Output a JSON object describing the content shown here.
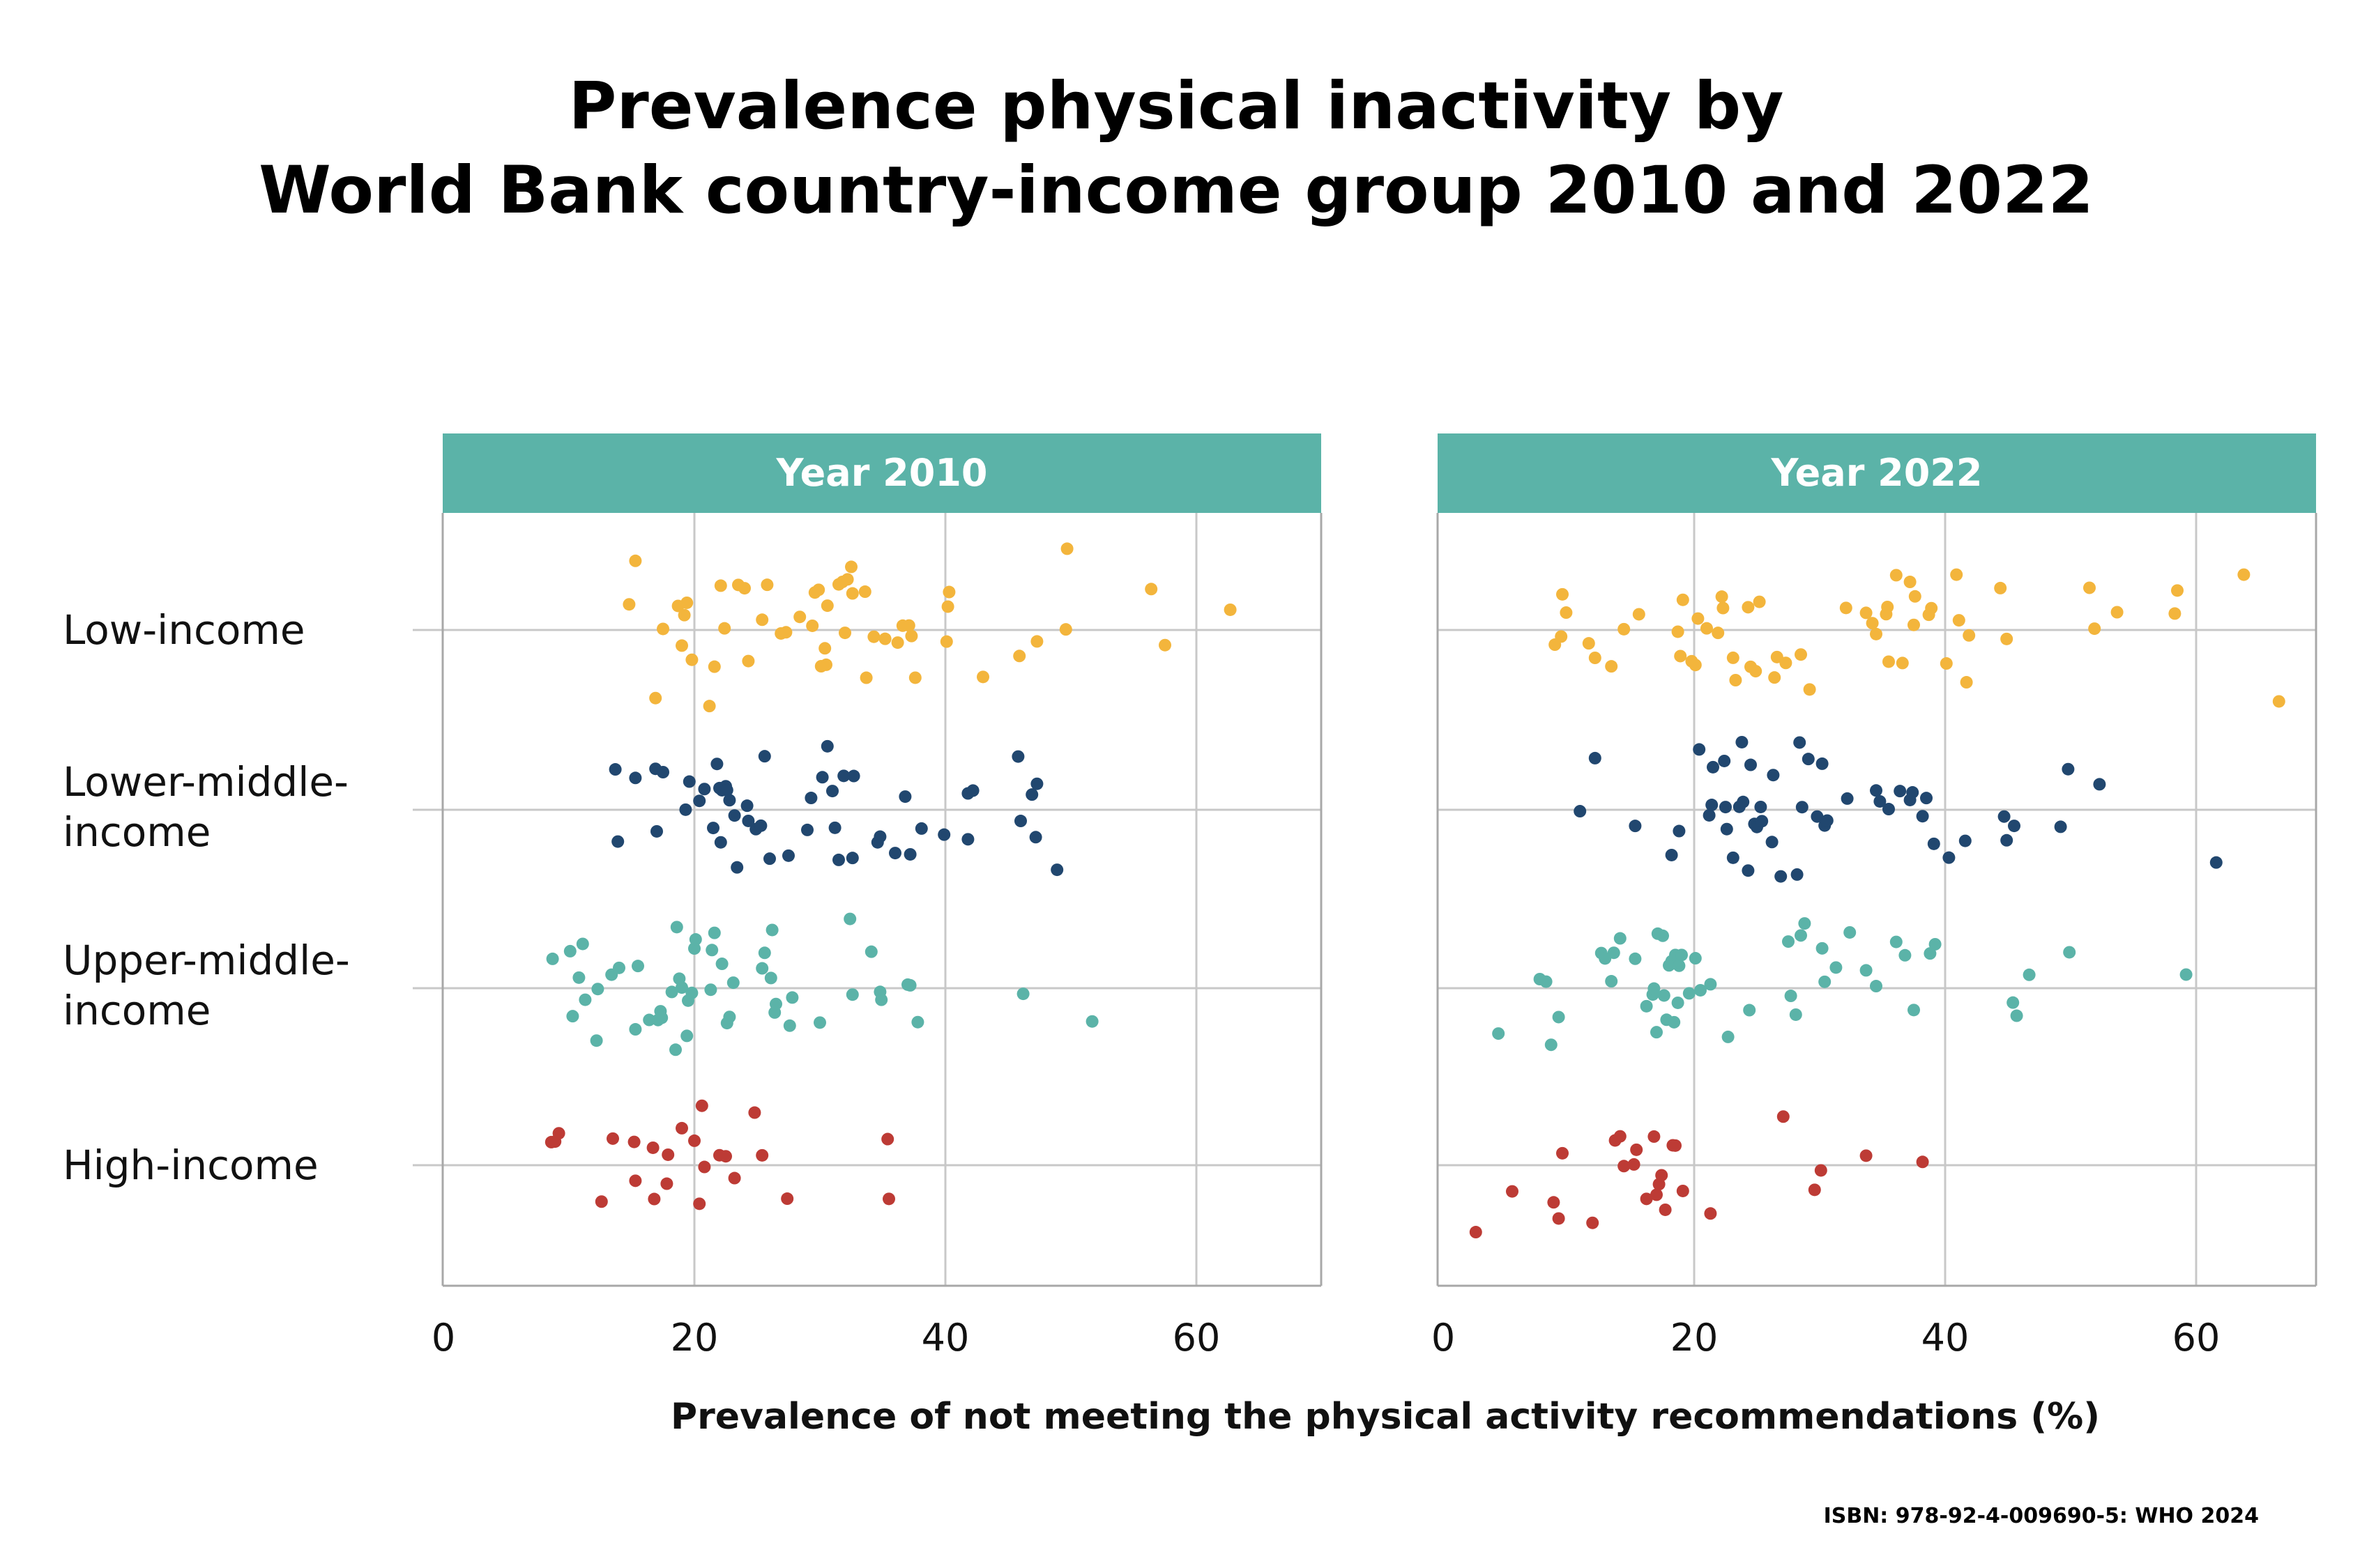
{
  "title_lines": [
    "Prevalence physical inactivity by",
    "World Bank country-income group 2010 and 2022"
  ],
  "source": "ISBN: 978-92-4-009690-5: WHO 2024",
  "colors": {
    "panel_header": "#5bb3a8",
    "grid": "#c8c8c8",
    "frame": "#a8a8a8",
    "Low-income": "#f3b53c",
    "Lower-middle-income": "#21476f",
    "Upper-middle-income": "#5bb3a8",
    "High-income": "#bd3b35"
  },
  "chart_data": {
    "type": "scatter",
    "subtype": "beeswarm",
    "xlabel": "Prevalence of not meeting the physical activity recommendations (%)",
    "xlim": [
      0,
      70
    ],
    "xticks": [
      "0",
      "20",
      "40",
      "60"
    ],
    "grid": true,
    "categories": [
      {
        "key": "Low-income",
        "lines": [
          "Low-income"
        ]
      },
      {
        "key": "Lower-middle-income",
        "lines": [
          "Lower-middle-",
          "income"
        ]
      },
      {
        "key": "Upper-middle-income",
        "lines": [
          "Upper-middle-",
          "income"
        ]
      },
      {
        "key": "High-income",
        "lines": [
          "High-income"
        ]
      }
    ],
    "panels": [
      {
        "title": "Year 2010",
        "series": [
          {
            "category": "Low-income",
            "values": [
              14.8,
              15.3,
              16.9,
              17.5,
              18.7,
              19.0,
              19.2,
              19.4,
              19.8,
              21.2,
              21.6,
              22.1,
              22.4,
              23.5,
              24.0,
              24.3,
              25.4,
              25.8,
              26.9,
              27.3,
              28.4,
              29.4,
              29.6,
              29.9,
              30.1,
              30.4,
              30.5,
              30.6,
              31.5,
              31.8,
              32.0,
              32.2,
              32.5,
              32.6,
              33.6,
              33.7,
              34.3,
              35.2,
              36.2,
              36.6,
              37.1,
              37.3,
              37.6,
              40.1,
              40.2,
              40.3,
              43.0,
              45.9,
              47.3,
              49.6,
              49.7,
              56.4,
              57.5,
              62.7
            ]
          },
          {
            "category": "Lower-middle-income",
            "values": [
              13.7,
              13.9,
              15.3,
              16.9,
              17.0,
              17.5,
              19.3,
              19.6,
              20.4,
              20.8,
              21.5,
              21.8,
              22.0,
              22.1,
              22.2,
              22.5,
              22.6,
              22.8,
              23.2,
              23.4,
              24.2,
              24.3,
              24.9,
              25.3,
              25.6,
              26.0,
              27.5,
              29.0,
              29.3,
              30.2,
              30.6,
              31.0,
              31.2,
              31.5,
              31.9,
              32.6,
              32.7,
              34.6,
              34.8,
              36.0,
              36.8,
              37.2,
              38.1,
              39.9,
              41.8,
              41.8,
              42.2,
              45.8,
              46.0,
              46.9,
              47.2,
              47.3,
              48.9
            ]
          },
          {
            "category": "Upper-middle-income",
            "values": [
              8.7,
              10.1,
              10.3,
              10.8,
              11.1,
              11.3,
              12.2,
              12.3,
              13.4,
              14.0,
              15.3,
              15.5,
              16.4,
              17.1,
              17.3,
              17.4,
              18.2,
              18.5,
              18.6,
              18.8,
              19.0,
              19.4,
              19.5,
              19.8,
              20.0,
              20.1,
              21.3,
              21.4,
              21.6,
              22.2,
              22.6,
              22.8,
              23.1,
              25.4,
              25.6,
              26.1,
              26.2,
              26.4,
              26.5,
              27.6,
              27.8,
              30.0,
              32.4,
              32.6,
              34.1,
              34.8,
              34.9,
              37.0,
              37.2,
              37.8,
              46.2,
              51.7
            ]
          },
          {
            "category": "High-income",
            "values": [
              8.6,
              8.9,
              9.2,
              12.6,
              13.5,
              15.2,
              15.3,
              16.7,
              16.8,
              17.8,
              17.9,
              19.0,
              20.0,
              20.4,
              20.6,
              20.8,
              22.0,
              22.5,
              23.2,
              24.8,
              25.4,
              27.4,
              35.4,
              35.5
            ]
          }
        ]
      },
      {
        "title": "Year 2022",
        "series": [
          {
            "category": "Low-income",
            "values": [
              8.9,
              9.4,
              9.5,
              9.8,
              11.6,
              12.1,
              13.4,
              14.4,
              15.6,
              18.7,
              18.9,
              19.1,
              19.8,
              20.1,
              20.3,
              21.0,
              21.9,
              22.2,
              22.3,
              23.1,
              23.3,
              24.3,
              24.5,
              24.9,
              25.2,
              26.4,
              26.6,
              27.3,
              28.5,
              29.2,
              32.1,
              33.7,
              34.2,
              34.5,
              35.3,
              35.4,
              35.5,
              36.1,
              36.6,
              37.2,
              37.5,
              37.6,
              38.7,
              38.9,
              40.1,
              40.9,
              41.1,
              41.7,
              41.9,
              44.4,
              44.9,
              51.5,
              51.9,
              53.7,
              58.3,
              58.5,
              63.8,
              66.6
            ]
          },
          {
            "category": "Lower-middle-income",
            "values": [
              10.9,
              12.1,
              15.3,
              18.2,
              18.8,
              20.4,
              21.2,
              21.4,
              21.5,
              22.4,
              22.5,
              22.6,
              23.1,
              23.6,
              23.8,
              23.9,
              24.3,
              24.5,
              24.8,
              25.0,
              25.3,
              25.4,
              26.2,
              26.3,
              26.9,
              28.2,
              28.4,
              28.6,
              29.1,
              29.8,
              30.2,
              30.4,
              30.6,
              32.2,
              34.5,
              34.8,
              35.5,
              36.4,
              37.2,
              37.4,
              38.2,
              38.5,
              39.1,
              40.3,
              41.6,
              44.7,
              44.9,
              45.5,
              49.2,
              49.8,
              52.3,
              61.6
            ]
          },
          {
            "category": "Upper-middle-income",
            "values": [
              4.4,
              7.7,
              8.2,
              8.6,
              9.2,
              12.6,
              12.9,
              13.4,
              13.6,
              14.1,
              15.3,
              16.2,
              16.7,
              16.8,
              17.0,
              17.1,
              17.5,
              17.6,
              17.8,
              18.0,
              18.2,
              18.4,
              18.5,
              18.7,
              18.8,
              19.0,
              19.6,
              20.1,
              20.5,
              21.3,
              22.7,
              24.4,
              27.5,
              27.7,
              28.1,
              28.5,
              28.8,
              30.2,
              30.4,
              31.3,
              32.4,
              33.7,
              34.5,
              36.1,
              36.8,
              37.5,
              38.8,
              39.2,
              45.4,
              45.7,
              46.7,
              49.9,
              59.2
            ]
          },
          {
            "category": "High-income",
            "values": [
              2.6,
              5.5,
              8.8,
              9.2,
              9.5,
              11.9,
              13.7,
              14.1,
              14.4,
              15.2,
              15.4,
              16.2,
              16.8,
              17.0,
              17.2,
              17.4,
              17.7,
              18.3,
              18.5,
              19.1,
              21.3,
              27.1,
              29.6,
              30.1,
              33.7,
              38.2
            ]
          }
        ]
      }
    ]
  }
}
